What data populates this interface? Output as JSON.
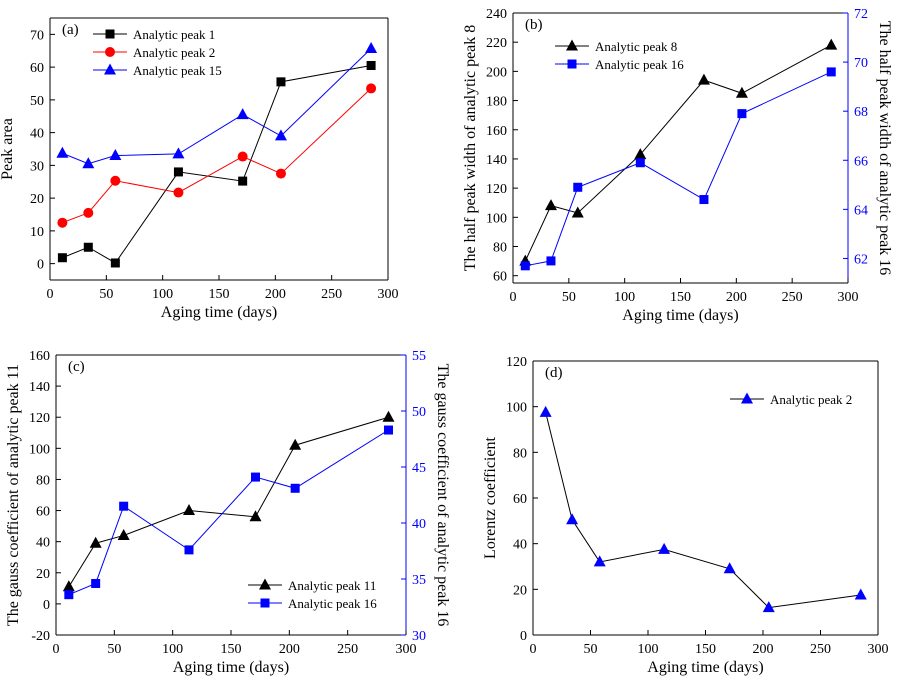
{
  "chart_data": [
    {
      "type": "line",
      "panel_label": "(a)",
      "xlabel": "Aging time (days)",
      "ylabel": "Peak area",
      "xlim": [
        0,
        300
      ],
      "ylim": [
        -5,
        75
      ],
      "xticks": [
        0,
        50,
        100,
        150,
        200,
        250,
        300
      ],
      "yticks": [
        0,
        10,
        20,
        30,
        40,
        50,
        60,
        70
      ],
      "legend_position": "top-left",
      "series": [
        {
          "name": "Analytic peak 1",
          "color": "#000000",
          "marker": "square",
          "axis": "left",
          "x": [
            11,
            34,
            58,
            114,
            171,
            205,
            285
          ],
          "y": [
            1.8,
            5.0,
            0.2,
            28.0,
            25.2,
            55.5,
            60.5
          ]
        },
        {
          "name": "Analytic peak 2",
          "color": "#ff0000",
          "marker": "circle",
          "axis": "left",
          "x": [
            11,
            34,
            58,
            114,
            171,
            205,
            285
          ],
          "y": [
            12.5,
            15.5,
            25.3,
            21.7,
            32.7,
            27.5,
            53.5
          ]
        },
        {
          "name": "Analytic peak 15",
          "color": "#0000ff",
          "marker": "triangle",
          "axis": "left",
          "x": [
            11,
            34,
            58,
            114,
            171,
            205,
            285
          ],
          "y": [
            33.7,
            30.5,
            33.0,
            33.5,
            45.5,
            39.0,
            65.7
          ]
        }
      ]
    },
    {
      "type": "line",
      "panel_label": "(b)",
      "xlabel": "Aging time (days)",
      "ylabel": "The half peak width of analytic peak 8",
      "ylabel_right": "The half peak width of analytic peak 16",
      "xlim": [
        0,
        300
      ],
      "ylim": [
        55,
        240
      ],
      "ylim_right": [
        61.0,
        72.0
      ],
      "xticks": [
        0,
        50,
        100,
        150,
        200,
        250,
        300
      ],
      "yticks": [
        60,
        80,
        100,
        120,
        140,
        160,
        180,
        200,
        220,
        240
      ],
      "yticks_right": [
        62,
        64,
        66,
        68,
        70,
        72
      ],
      "legend_position": "top-left",
      "series": [
        {
          "name": "Analytic peak 8",
          "color": "#000000",
          "marker": "triangle",
          "axis": "left",
          "x": [
            11,
            34,
            58,
            114,
            171,
            205,
            285
          ],
          "y": [
            70,
            108,
            103,
            143,
            194,
            185,
            218
          ]
        },
        {
          "name": "Analytic peak 16",
          "color": "#0000ff",
          "marker": "square",
          "axis": "right",
          "x": [
            11,
            34,
            58,
            114,
            171,
            205,
            285
          ],
          "y": [
            61.7,
            61.9,
            64.9,
            65.9,
            64.4,
            67.9,
            69.6
          ]
        }
      ]
    },
    {
      "type": "line",
      "panel_label": "(c)",
      "xlabel": "Aging time (days)",
      "ylabel": "The gauss coefficient of analytic peak 11",
      "ylabel_right": "The gauss coefficient of analytic peak 16",
      "xlim": [
        0,
        300
      ],
      "ylim": [
        -20,
        160
      ],
      "ylim_right": [
        30,
        55
      ],
      "xticks": [
        0,
        50,
        100,
        150,
        200,
        250,
        300
      ],
      "yticks": [
        -20,
        0,
        20,
        40,
        60,
        80,
        100,
        120,
        140,
        160
      ],
      "yticks_right": [
        30,
        35,
        40,
        45,
        50,
        55
      ],
      "legend_position": "bottom-right",
      "series": [
        {
          "name": "Analytic peak 11",
          "color": "#000000",
          "marker": "triangle",
          "axis": "left",
          "x": [
            11,
            34,
            58,
            114,
            171,
            205,
            285
          ],
          "y": [
            11,
            39,
            44,
            60,
            56,
            102,
            120
          ]
        },
        {
          "name": "Analytic peak 16",
          "color": "#0000ff",
          "marker": "square",
          "axis": "right",
          "x": [
            11,
            34,
            58,
            114,
            171,
            205,
            285
          ],
          "y": [
            33.6,
            34.6,
            41.5,
            37.6,
            44.1,
            43.1,
            48.3
          ]
        }
      ]
    },
    {
      "type": "line",
      "panel_label": "(d)",
      "xlabel": "Aging time (days)",
      "ylabel": "Lorentz coefficient",
      "xlim": [
        0,
        300
      ],
      "ylim": [
        0,
        120
      ],
      "xticks": [
        0,
        50,
        100,
        150,
        200,
        250,
        300
      ],
      "yticks": [
        0,
        20,
        40,
        60,
        80,
        100,
        120
      ],
      "legend_position": "top-right",
      "series": [
        {
          "name": "Analytic peak 2",
          "color": "#0000ff",
          "marker": "triangle",
          "axis": "left",
          "line_color": "#000000",
          "x": [
            11,
            34,
            58,
            114,
            171,
            205,
            285
          ],
          "y": [
            97.5,
            50.5,
            32.0,
            37.5,
            29.0,
            12.0,
            17.5
          ]
        }
      ]
    }
  ]
}
